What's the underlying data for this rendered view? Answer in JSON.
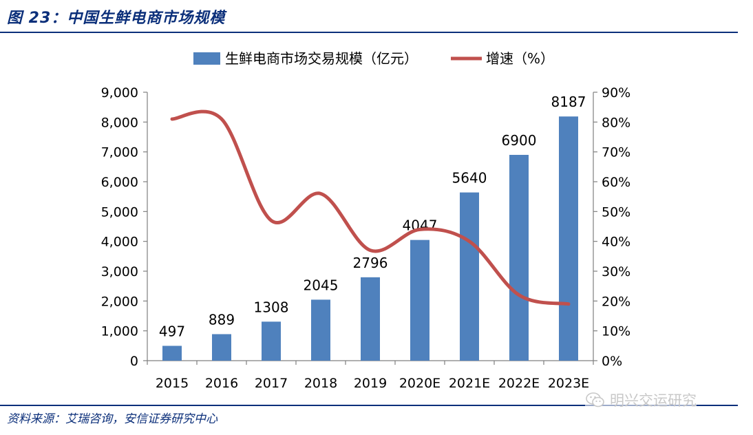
{
  "header": {
    "figure_title": "图 23：中国生鲜电商市场规模"
  },
  "footer": {
    "source": "资料来源：艾瑞咨询，安信证券研究中心",
    "watermark": "明兴交运研究"
  },
  "colors": {
    "bar": "#4f81bd",
    "line": "#c0504d",
    "title": "#0b2f7a"
  },
  "chart_data": {
    "type": "bar",
    "title": "",
    "xlabel": "",
    "ylabel": "",
    "categories": [
      "2015",
      "2016",
      "2017",
      "2018",
      "2019",
      "2020E",
      "2021E",
      "2022E",
      "2023E"
    ],
    "series": [
      {
        "name": "生鲜电商市场交易规模（亿元）",
        "type": "bar",
        "axis": "left",
        "values": [
          497,
          889,
          1308,
          2045,
          2796,
          4047,
          5640,
          6900,
          8187
        ],
        "data_labels": [
          "497",
          "889",
          "1308",
          "2045",
          "2796",
          "4047",
          "5640",
          "6900",
          "8187"
        ]
      },
      {
        "name": "增速（%）",
        "type": "line",
        "axis": "right",
        "values": [
          81,
          81,
          47,
          56,
          37,
          44,
          40,
          22,
          19
        ]
      }
    ],
    "ylim_left": [
      0,
      9000
    ],
    "ylim_right": [
      0,
      90
    ],
    "y_ticks_left": [
      "0",
      "1,000",
      "2,000",
      "3,000",
      "4,000",
      "5,000",
      "6,000",
      "7,000",
      "8,000",
      "9,000"
    ],
    "y_ticks_right": [
      "0%",
      "10%",
      "20%",
      "30%",
      "40%",
      "50%",
      "60%",
      "70%",
      "80%",
      "90%"
    ],
    "grid": false,
    "legend_position": "top"
  }
}
